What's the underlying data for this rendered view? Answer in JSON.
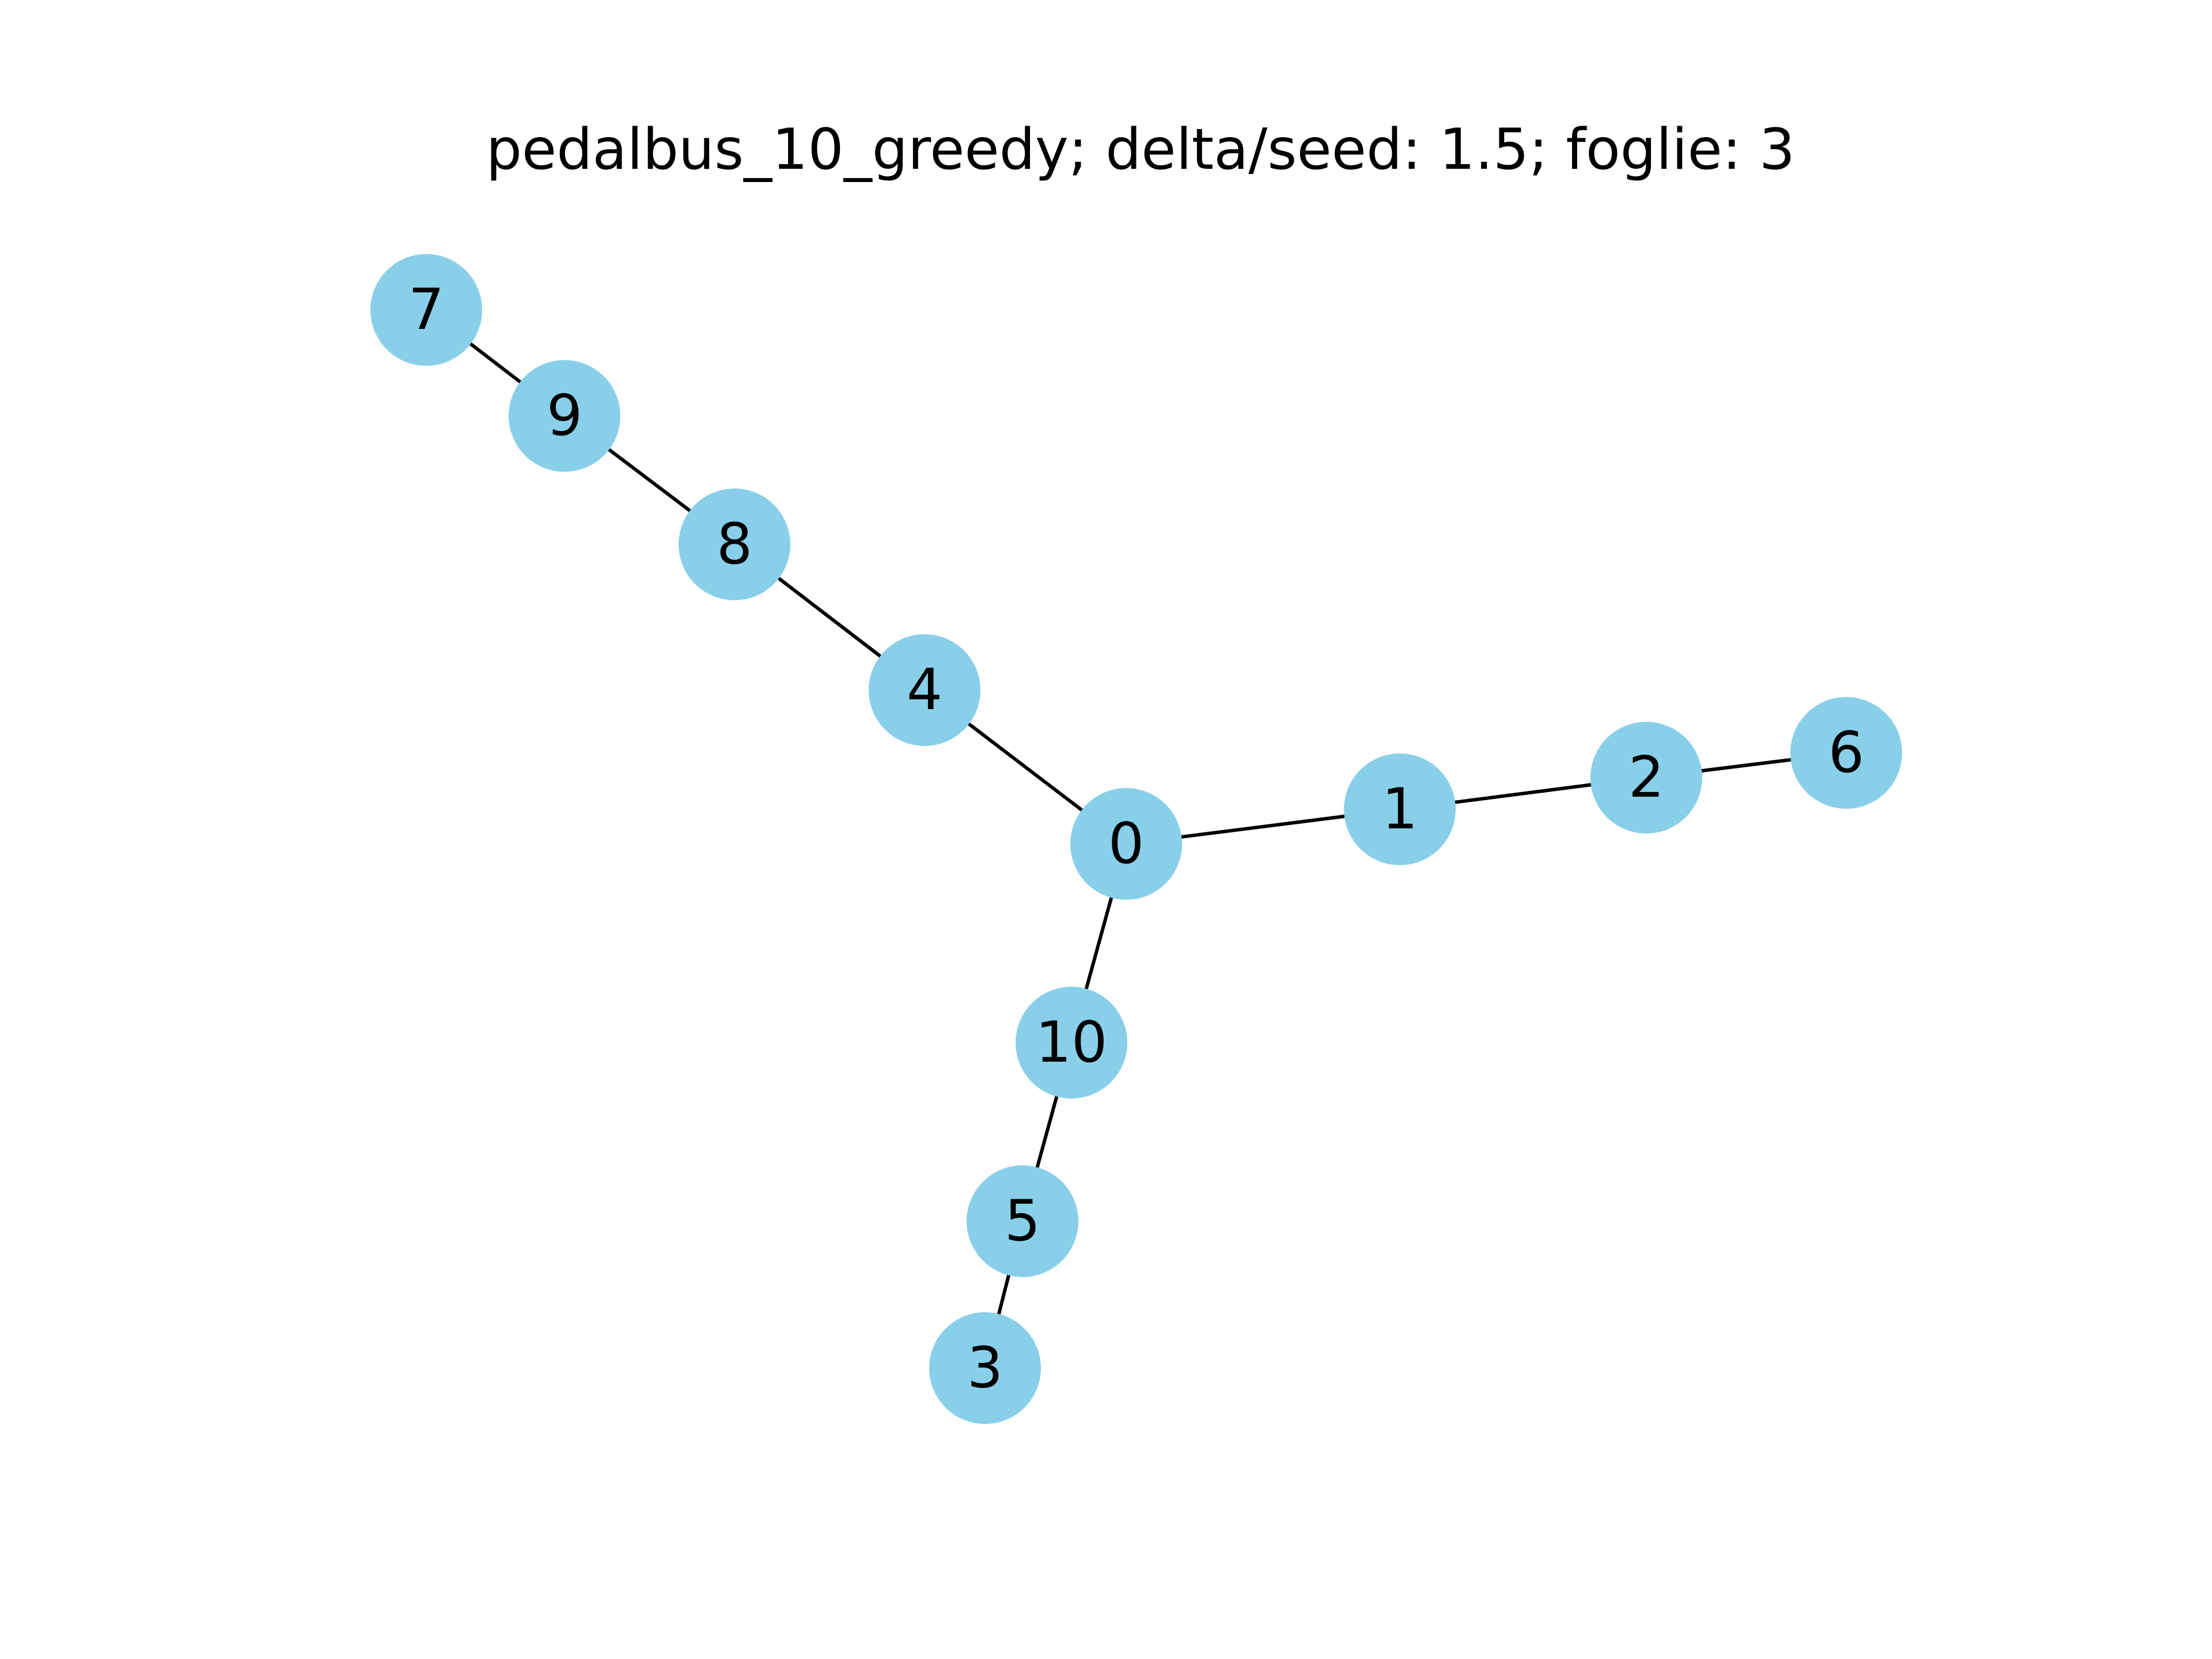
{
  "title": "pedalbus_10_greedy; delta/seed: 1.5; foglie: 3",
  "colors": {
    "node_fill": "#89CFEA",
    "edge_stroke": "#000000",
    "text": "#000000",
    "background": "#FFFFFF"
  },
  "graph": {
    "nodes": [
      {
        "id": "0",
        "label": "0"
      },
      {
        "id": "1",
        "label": "1"
      },
      {
        "id": "2",
        "label": "2"
      },
      {
        "id": "3",
        "label": "3"
      },
      {
        "id": "4",
        "label": "4"
      },
      {
        "id": "5",
        "label": "5"
      },
      {
        "id": "6",
        "label": "6"
      },
      {
        "id": "7",
        "label": "7"
      },
      {
        "id": "8",
        "label": "8"
      },
      {
        "id": "9",
        "label": "9"
      },
      {
        "id": "10",
        "label": "10"
      }
    ],
    "edges": [
      {
        "source": "0",
        "target": "4"
      },
      {
        "source": "4",
        "target": "8"
      },
      {
        "source": "8",
        "target": "9"
      },
      {
        "source": "9",
        "target": "7"
      },
      {
        "source": "0",
        "target": "1"
      },
      {
        "source": "1",
        "target": "2"
      },
      {
        "source": "2",
        "target": "6"
      },
      {
        "source": "0",
        "target": "10"
      },
      {
        "source": "10",
        "target": "5"
      },
      {
        "source": "5",
        "target": "3"
      }
    ]
  }
}
